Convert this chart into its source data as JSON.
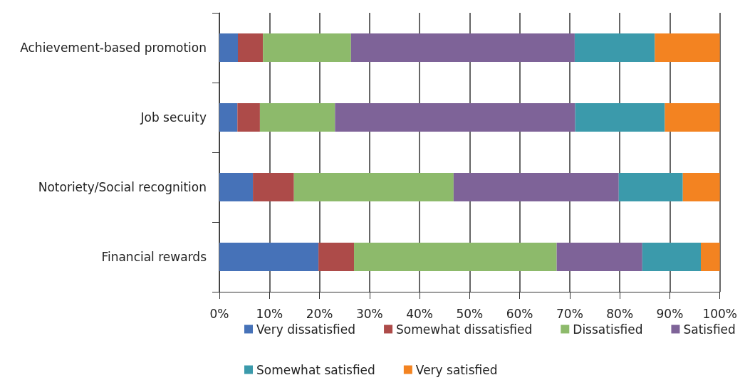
{
  "chart_data": {
    "type": "bar",
    "orientation": "horizontal",
    "stacked": true,
    "categories": [
      "Achievement-based promotion",
      "Job secuity",
      "Notoriety/Social recognition",
      "Financial rewards"
    ],
    "series": [
      {
        "name": "Very dissatisfied",
        "color": "#4672b8",
        "values": [
          3.7,
          3.6,
          6.7,
          19.8
        ]
      },
      {
        "name": "Somewhat dissatisfied",
        "color": "#ad4b49",
        "values": [
          5.0,
          4.5,
          8.2,
          7.1
        ]
      },
      {
        "name": "Dissatisfied",
        "color": "#8dba6b",
        "values": [
          17.6,
          15.0,
          31.9,
          40.5
        ]
      },
      {
        "name": "Satisfied",
        "color": "#7e6398",
        "values": [
          44.7,
          48.0,
          33.0,
          17.1
        ]
      },
      {
        "name": "Somewhat satisfied",
        "color": "#3b9aab",
        "values": [
          16.0,
          17.9,
          12.8,
          11.7
        ]
      },
      {
        "name": "Very satisfied",
        "color": "#f38321",
        "values": [
          13.0,
          11.0,
          7.4,
          3.8
        ]
      }
    ],
    "xlim": [
      0,
      100
    ],
    "xticks": [
      {
        "value": 0,
        "label": "0%"
      },
      {
        "value": 10,
        "label": "10%"
      },
      {
        "value": 20,
        "label": "20%"
      },
      {
        "value": 30,
        "label": "30%"
      },
      {
        "value": 40,
        "label": "40%"
      },
      {
        "value": 50,
        "label": "50%"
      },
      {
        "value": 60,
        "label": "60%"
      },
      {
        "value": 70,
        "label": "70%"
      },
      {
        "value": 80,
        "label": "80%"
      },
      {
        "value": 90,
        "label": "90%"
      },
      {
        "value": 100,
        "label": "100%"
      }
    ],
    "grid": "x",
    "legend": "bottom"
  }
}
